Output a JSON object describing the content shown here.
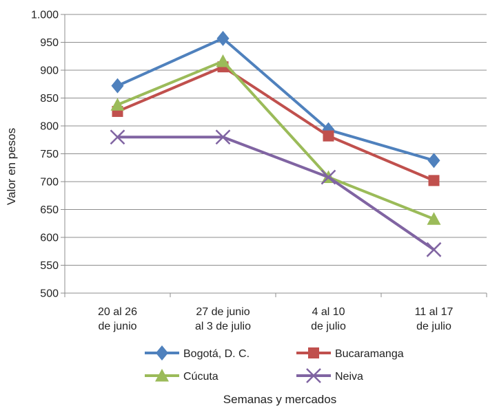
{
  "chart_data": {
    "type": "line",
    "categories": [
      [
        "20 al 26",
        "de junio"
      ],
      [
        "27 de junio",
        "al 3 de julio"
      ],
      [
        "4 al 10",
        "de julio"
      ],
      [
        "11 al 17",
        "de julio"
      ]
    ],
    "ylabel": "Valor en pesos",
    "xlabel": "Semanas y mercados",
    "ylim": [
      500,
      1000
    ],
    "yticks": [
      500,
      550,
      600,
      650,
      700,
      750,
      800,
      850,
      900,
      950,
      1000
    ],
    "ytick_labels": [
      "500",
      "550",
      "600",
      "650",
      "700",
      "750",
      "800",
      "850",
      "900",
      "950",
      "1.000"
    ],
    "grid": "horizontal",
    "legend_position": "bottom",
    "series": [
      {
        "name": "Bogotá, D. C.",
        "values": [
          872,
          957,
          793,
          738
        ],
        "color": "#4F81BD",
        "marker": "diamond"
      },
      {
        "name": "Bucaramanga",
        "values": [
          826,
          906,
          782,
          702
        ],
        "color": "#C0504D",
        "marker": "square"
      },
      {
        "name": "Cúcuta",
        "values": [
          838,
          916,
          708,
          633
        ],
        "color": "#9BBB59",
        "marker": "triangle"
      },
      {
        "name": "Neiva",
        "values": [
          780,
          780,
          708,
          578
        ],
        "color": "#8064A2",
        "marker": "x"
      }
    ]
  }
}
